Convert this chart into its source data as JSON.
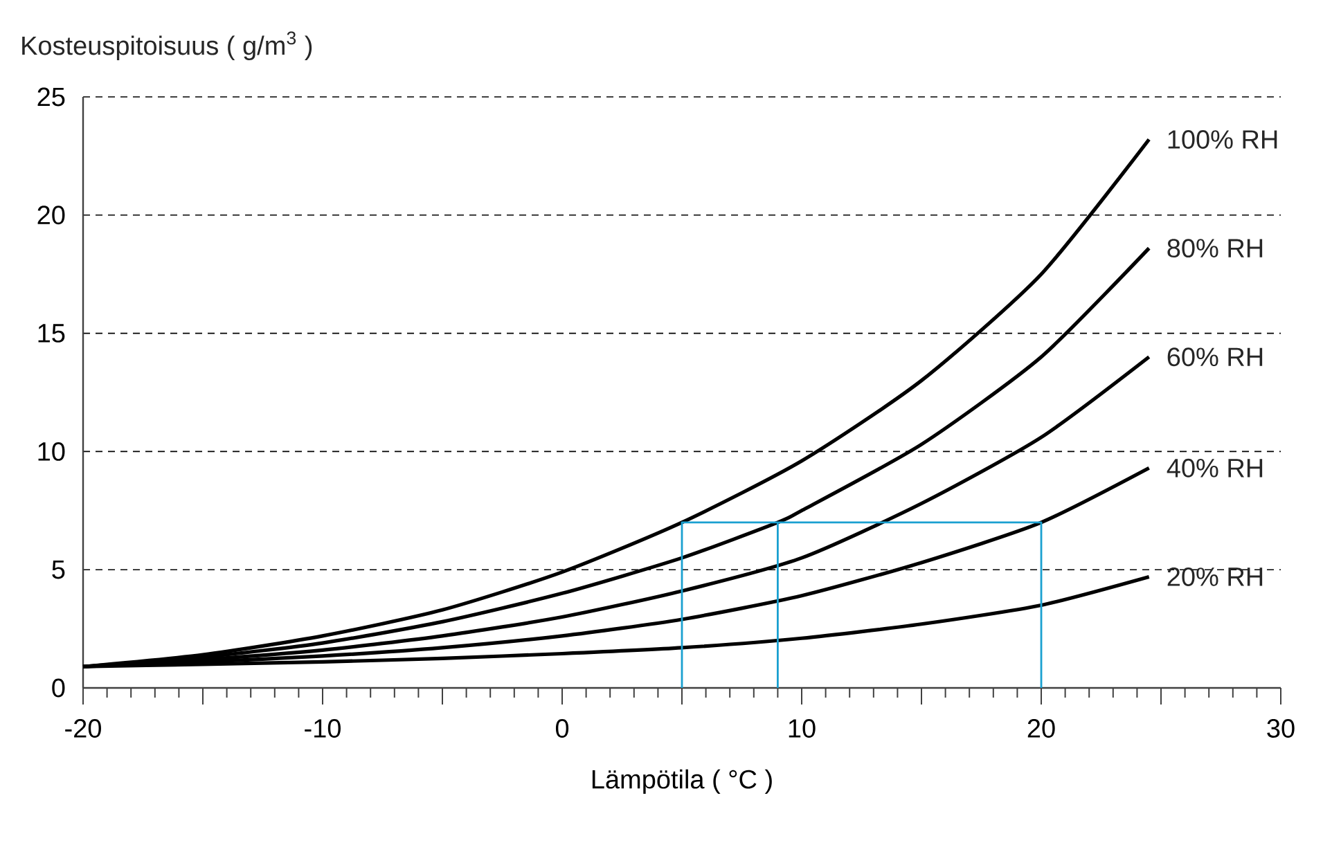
{
  "chart_data": {
    "type": "line",
    "xlabel": "Lämpötila ( °C )",
    "ylabel": "Kosteuspitoisuus ( g/m$^{3}$ )",
    "xlim": [
      -20,
      30
    ],
    "ylim": [
      0,
      25
    ],
    "xticks": [
      -20,
      {
        "value": -15,
        "label": null
      },
      -10,
      {
        "value": -5,
        "label": null
      },
      0,
      {
        "value": 5,
        "label": null
      },
      10,
      {
        "value": 15,
        "label": null
      },
      20,
      {
        "value": 25,
        "label": null
      },
      30
    ],
    "yticks": [
      0,
      5,
      10,
      15,
      20,
      25
    ],
    "grid": "y",
    "legend": false,
    "series": [
      {
        "name": "100% RH",
        "color": "#000000",
        "x": [
          -20,
          -15,
          -10,
          -5,
          0,
          5,
          10,
          15,
          20,
          24.5
        ],
        "values": [
          0.9,
          1.4,
          2.2,
          3.3,
          4.9,
          7.0,
          9.6,
          13.0,
          17.5,
          23.2
        ]
      },
      {
        "name": "80% RH",
        "color": "#000000",
        "x": [
          -20,
          -15,
          -10,
          -5,
          0,
          5,
          9,
          10,
          15,
          20,
          24.5
        ],
        "values": [
          0.9,
          1.3,
          1.9,
          2.8,
          4.0,
          5.5,
          7.0,
          7.5,
          10.3,
          14.0,
          18.6
        ]
      },
      {
        "name": "60% RH",
        "color": "#000000",
        "x": [
          -20,
          -15,
          -10,
          -5,
          0,
          5,
          10,
          15,
          20,
          24.5
        ],
        "values": [
          0.9,
          1.2,
          1.6,
          2.2,
          3.0,
          4.1,
          5.5,
          7.8,
          10.6,
          14.0
        ]
      },
      {
        "name": "40% RH",
        "color": "#000000",
        "x": [
          -20,
          -15,
          -10,
          -5,
          0,
          5,
          10,
          15,
          20,
          24.5
        ],
        "values": [
          0.9,
          1.1,
          1.35,
          1.7,
          2.2,
          2.9,
          3.9,
          5.3,
          7.0,
          9.3
        ]
      },
      {
        "name": "20% RH",
        "color": "#000000",
        "x": [
          -20,
          -15,
          -10,
          -5,
          0,
          5,
          10,
          15,
          20,
          24.5
        ],
        "values": [
          0.9,
          1.0,
          1.1,
          1.25,
          1.45,
          1.7,
          2.1,
          2.7,
          3.5,
          4.7
        ]
      },
      {
        "color": "#1aa0d0",
        "x": [
          5,
          5,
          20,
          20
        ],
        "values": [
          0,
          7,
          7,
          0
        ]
      },
      {
        "color": "#1aa0d0",
        "x": [
          9,
          9
        ],
        "values": [
          0,
          7
        ]
      }
    ]
  }
}
